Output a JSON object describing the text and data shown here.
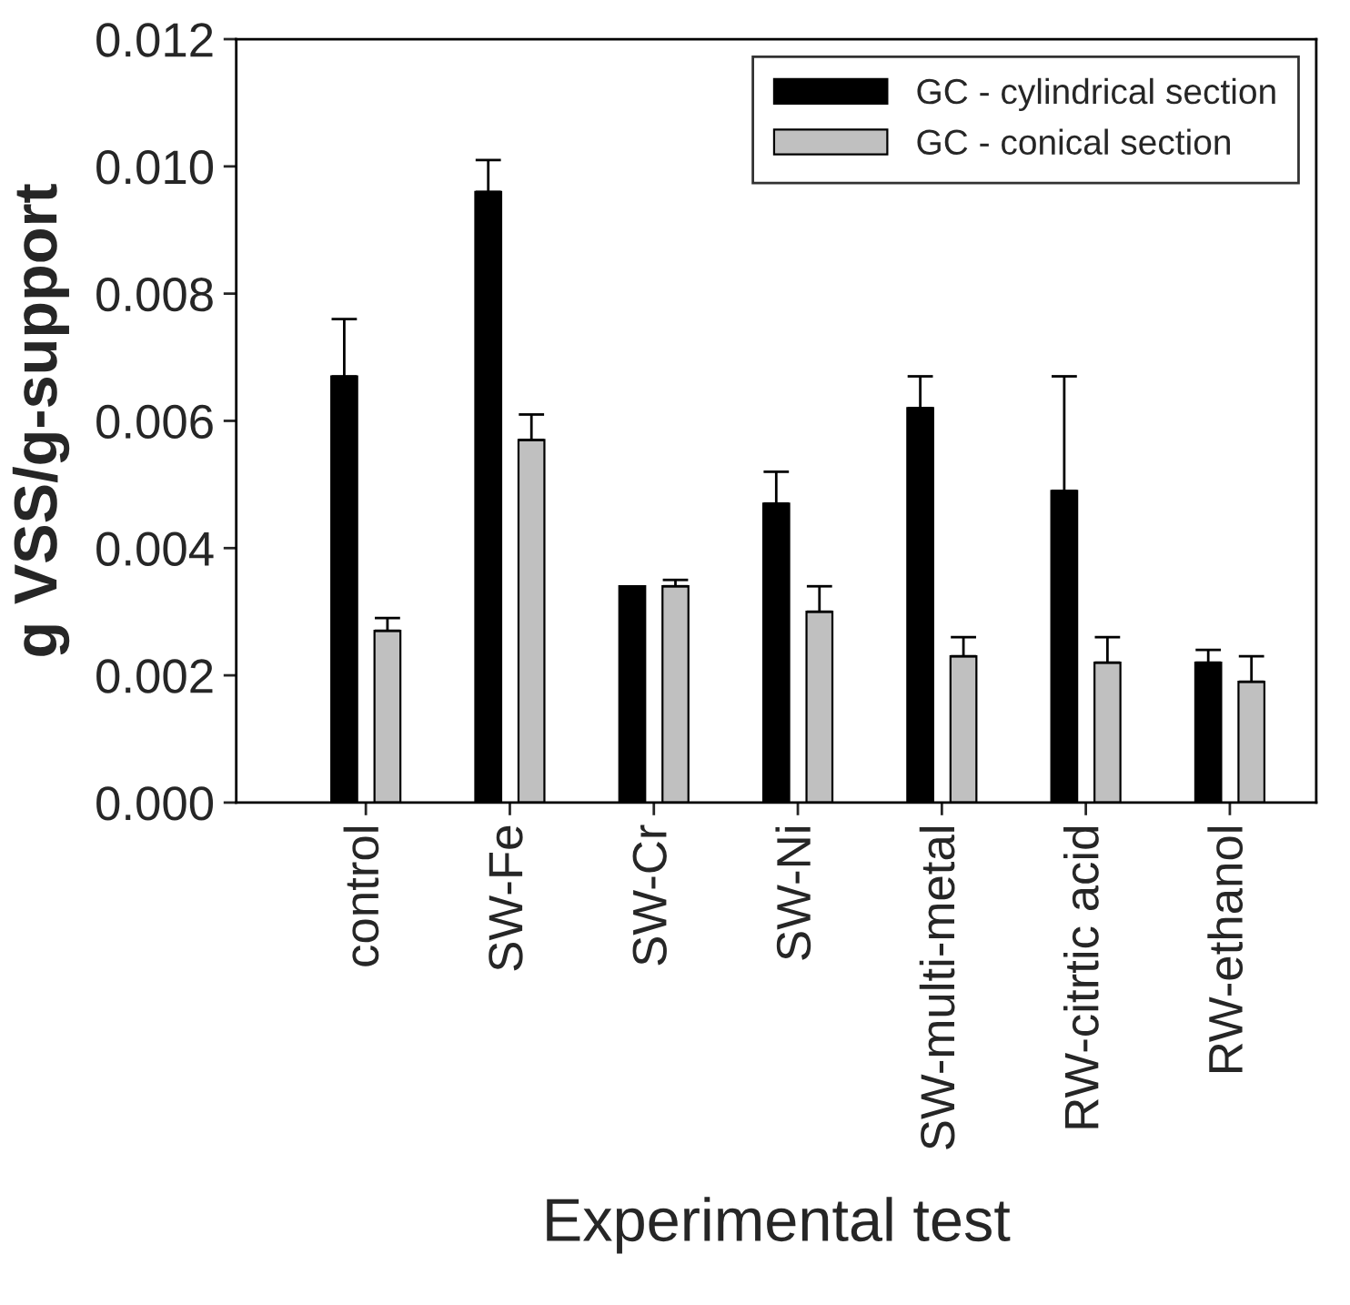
{
  "chart_data": {
    "type": "bar",
    "xlabel": "Experimental test",
    "ylabel": "g VSS/g-support",
    "categories": [
      "control",
      "SW-Fe",
      "SW-Cr",
      "SW-Ni",
      "SW-multi-metal",
      "RW-citrtic acid",
      "RW-ethanol"
    ],
    "series": [
      {
        "name": "GC - cylindrical section",
        "color": "#000000",
        "values": [
          0.0067,
          0.0096,
          0.0034,
          0.0047,
          0.0062,
          0.0049,
          0.0022
        ],
        "errors": [
          [
            0.0067,
            0.0076
          ],
          [
            0.0096,
            0.0101
          ],
          null,
          [
            0.0047,
            0.0052
          ],
          [
            0.0062,
            0.0067
          ],
          [
            0.0049,
            0.0067
          ],
          [
            0.0022,
            0.0024
          ]
        ]
      },
      {
        "name": "GC - conical section",
        "color": "#c0c0c0",
        "values": [
          0.0027,
          0.0057,
          0.0034,
          0.003,
          0.0023,
          0.0022,
          0.0019
        ],
        "errors": [
          [
            0.0027,
            0.0029
          ],
          [
            0.0057,
            0.0061
          ],
          [
            0.0034,
            0.0035
          ],
          [
            0.003,
            0.0034
          ],
          [
            0.0023,
            0.0026
          ],
          [
            0.0022,
            0.0026
          ],
          [
            0.0019,
            0.0023
          ]
        ]
      }
    ],
    "ylim": [
      0,
      0.012
    ],
    "yticks": [
      {
        "value": 0,
        "label": "0.000"
      },
      {
        "value": 0.002,
        "label": "0.002"
      },
      {
        "value": 0.004,
        "label": "0.004"
      },
      {
        "value": 0.006,
        "label": "0.006"
      },
      {
        "value": 0.008,
        "label": "0.008"
      },
      {
        "value": 0.01,
        "label": "0.010"
      },
      {
        "value": 0.012,
        "label": "0.012"
      }
    ],
    "legend": "top right",
    "grid": false
  }
}
